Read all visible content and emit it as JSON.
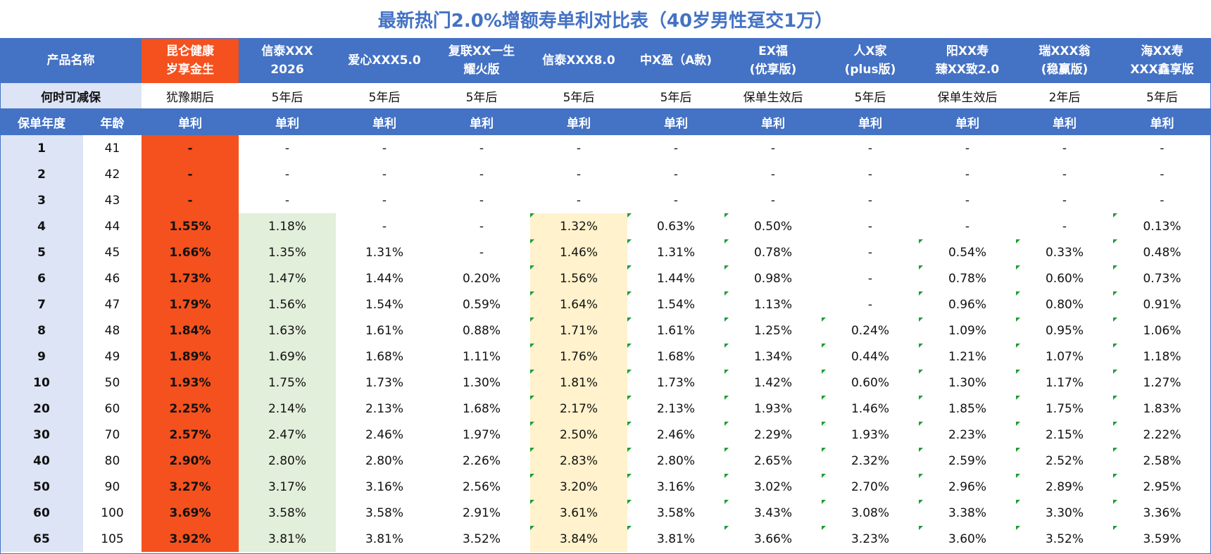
{
  "title": "最新热门2.0%增额寿单利对比表（40岁男性趸交1万）",
  "colors": {
    "header_blue": "#4472C4",
    "highlight_orange": "#F4511E",
    "green_col": "#E2EFDA",
    "yellow_col": "#FFF2CC",
    "year_col": "#DCE4F5"
  },
  "header": {
    "corner": "产品名称",
    "products": [
      [
        "昆仑健康",
        "岁享金生"
      ],
      [
        "信泰XXX",
        "2026"
      ],
      [
        "爱心XXX5.0"
      ],
      [
        "复联XX一生",
        "耀火版"
      ],
      [
        "信泰XXX8.0"
      ],
      [
        "中X盈（A款)"
      ],
      [
        "EX福",
        "(优享版)"
      ],
      [
        "人X家",
        "(plus版)"
      ],
      [
        "阳XX寿",
        "臻XX致2.0"
      ],
      [
        "瑞XXX翁",
        "(稳赢版)"
      ],
      [
        "海XX寿",
        "XXX鑫享版"
      ]
    ]
  },
  "jianbao": {
    "label": "何时可减保",
    "values": [
      "犹豫期后",
      "5年后",
      "5年后",
      "5年后",
      "5年后",
      "5年后",
      "保单生效后",
      "5年后",
      "保单生效后",
      "2年后",
      "5年后"
    ]
  },
  "subheader": {
    "year": "保单年度",
    "age": "年龄",
    "unit": "单利"
  },
  "rows": [
    {
      "year": "1",
      "age": "41",
      "vals": [
        "-",
        "-",
        "-",
        "-",
        "-",
        "-",
        "-",
        "-",
        "-",
        "-",
        "-"
      ]
    },
    {
      "year": "2",
      "age": "42",
      "vals": [
        "-",
        "-",
        "-",
        "-",
        "-",
        "-",
        "-",
        "-",
        "-",
        "-",
        "-"
      ]
    },
    {
      "year": "3",
      "age": "43",
      "vals": [
        "-",
        "-",
        "-",
        "-",
        "-",
        "-",
        "-",
        "-",
        "-",
        "-",
        "-"
      ]
    },
    {
      "year": "4",
      "age": "44",
      "vals": [
        "1.55%",
        "1.18%",
        "-",
        "-",
        "1.32%",
        "0.63%",
        "0.50%",
        "-",
        "-",
        "-",
        "0.13%"
      ]
    },
    {
      "year": "5",
      "age": "45",
      "vals": [
        "1.66%",
        "1.35%",
        "1.31%",
        "-",
        "1.46%",
        "1.31%",
        "0.78%",
        "-",
        "0.54%",
        "0.33%",
        "0.48%"
      ]
    },
    {
      "year": "6",
      "age": "46",
      "vals": [
        "1.73%",
        "1.47%",
        "1.44%",
        "0.20%",
        "1.56%",
        "1.44%",
        "0.98%",
        "-",
        "0.78%",
        "0.60%",
        "0.73%"
      ]
    },
    {
      "year": "7",
      "age": "47",
      "vals": [
        "1.79%",
        "1.56%",
        "1.54%",
        "0.59%",
        "1.64%",
        "1.54%",
        "1.13%",
        "-",
        "0.96%",
        "0.80%",
        "0.91%"
      ]
    },
    {
      "year": "8",
      "age": "48",
      "vals": [
        "1.84%",
        "1.63%",
        "1.61%",
        "0.88%",
        "1.71%",
        "1.61%",
        "1.25%",
        "0.24%",
        "1.09%",
        "0.95%",
        "1.06%"
      ]
    },
    {
      "year": "9",
      "age": "49",
      "vals": [
        "1.89%",
        "1.69%",
        "1.68%",
        "1.11%",
        "1.76%",
        "1.68%",
        "1.34%",
        "0.44%",
        "1.21%",
        "1.07%",
        "1.18%"
      ]
    },
    {
      "year": "10",
      "age": "50",
      "vals": [
        "1.93%",
        "1.75%",
        "1.73%",
        "1.30%",
        "1.81%",
        "1.73%",
        "1.42%",
        "0.60%",
        "1.30%",
        "1.17%",
        "1.27%"
      ]
    },
    {
      "year": "20",
      "age": "60",
      "vals": [
        "2.25%",
        "2.14%",
        "2.13%",
        "1.68%",
        "2.17%",
        "2.13%",
        "1.93%",
        "1.46%",
        "1.85%",
        "1.75%",
        "1.83%"
      ]
    },
    {
      "year": "30",
      "age": "70",
      "vals": [
        "2.57%",
        "2.47%",
        "2.46%",
        "1.97%",
        "2.50%",
        "2.46%",
        "2.29%",
        "1.93%",
        "2.23%",
        "2.15%",
        "2.22%"
      ]
    },
    {
      "year": "40",
      "age": "80",
      "vals": [
        "2.90%",
        "2.80%",
        "2.80%",
        "2.26%",
        "2.83%",
        "2.80%",
        "2.65%",
        "2.32%",
        "2.59%",
        "2.52%",
        "2.58%"
      ]
    },
    {
      "year": "50",
      "age": "90",
      "vals": [
        "3.27%",
        "3.17%",
        "3.16%",
        "2.56%",
        "3.20%",
        "3.16%",
        "3.02%",
        "2.70%",
        "2.96%",
        "2.89%",
        "2.95%"
      ]
    },
    {
      "year": "60",
      "age": "100",
      "vals": [
        "3.69%",
        "3.58%",
        "3.58%",
        "2.91%",
        "3.61%",
        "3.58%",
        "3.43%",
        "3.08%",
        "3.38%",
        "3.30%",
        "3.36%"
      ]
    },
    {
      "year": "65",
      "age": "105",
      "vals": [
        "3.92%",
        "3.81%",
        "3.81%",
        "3.52%",
        "3.84%",
        "3.81%",
        "3.66%",
        "3.23%",
        "3.60%",
        "3.52%",
        "3.59%"
      ]
    }
  ]
}
